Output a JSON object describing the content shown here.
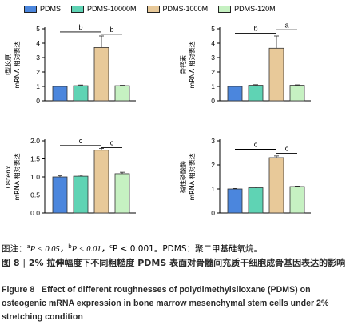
{
  "legend": [
    {
      "name": "PDMS",
      "color": "#4b86dd"
    },
    {
      "name": "PDMS-10000M",
      "color": "#5fd3b4"
    },
    {
      "name": "PDMS-1000M",
      "color": "#e8c999"
    },
    {
      "name": "PDMS-120M",
      "color": "#c6f1c2"
    }
  ],
  "chart_data": [
    {
      "type": "bar",
      "ylabel_lines": [
        "Ⅰ型胶原",
        "mRNA 相对表达"
      ],
      "categories": [
        "PDMS",
        "PDMS-10000M",
        "PDMS-1000M",
        "PDMS-120M"
      ],
      "values": [
        1.0,
        1.05,
        3.7,
        1.05
      ],
      "errors": [
        0.03,
        0.05,
        0.8,
        0.03
      ],
      "ylim": [
        0,
        5
      ],
      "ticks": [
        "0",
        "1",
        "2",
        "3",
        "4",
        "5"
      ],
      "brackets": [
        {
          "from": 0,
          "to": 2,
          "level": 4.78,
          "label": "b"
        },
        {
          "from": 2,
          "to": 3,
          "level": 4.62,
          "label": "b"
        }
      ]
    },
    {
      "type": "bar",
      "ylabel_lines": [
        "骨钙素",
        "mRNA 相对表达"
      ],
      "categories": [
        "PDMS",
        "PDMS-10000M",
        "PDMS-1000M",
        "PDMS-120M"
      ],
      "values": [
        1.0,
        1.08,
        3.65,
        1.08
      ],
      "errors": [
        0.03,
        0.04,
        0.85,
        0.03
      ],
      "ylim": [
        0,
        5
      ],
      "ticks": [
        "0",
        "1",
        "2",
        "3",
        "4",
        "5"
      ],
      "brackets": [
        {
          "from": 0,
          "to": 2,
          "level": 4.7,
          "label": "b"
        },
        {
          "from": 2,
          "to": 3,
          "level": 4.93,
          "label": "a"
        }
      ]
    },
    {
      "type": "bar",
      "ylabel_lines": [
        "Osterix",
        "mRNA 相对表达"
      ],
      "categories": [
        "PDMS",
        "PDMS-10000M",
        "PDMS-1000M",
        "PDMS-120M"
      ],
      "values": [
        1.0,
        1.02,
        1.74,
        1.09
      ],
      "errors": [
        0.03,
        0.03,
        0.05,
        0.04
      ],
      "ylim": [
        0,
        2.0
      ],
      "ticks": [
        "0.0",
        "0.5",
        "1.0",
        "1.5",
        "2.0"
      ],
      "brackets": [
        {
          "from": 0,
          "to": 2,
          "level": 1.87,
          "label": "c"
        },
        {
          "from": 2,
          "to": 3,
          "level": 1.81,
          "label": "c"
        }
      ]
    },
    {
      "type": "bar",
      "ylabel_lines": [
        "碱性磷酸酶",
        "mRNA 相对表达"
      ],
      "categories": [
        "PDMS",
        "PDMS-10000M",
        "PDMS-1000M",
        "PDMS-120M"
      ],
      "values": [
        1.0,
        1.05,
        2.3,
        1.1
      ],
      "errors": [
        0.02,
        0.03,
        0.07,
        0.02
      ],
      "ylim": [
        0,
        3
      ],
      "ticks": [
        "0",
        "1",
        "2",
        "3"
      ],
      "brackets": [
        {
          "from": 0,
          "to": 2,
          "level": 2.65,
          "label": "c"
        },
        {
          "from": 2,
          "to": 3,
          "level": 2.48,
          "label": "c"
        }
      ]
    }
  ],
  "notes": {
    "prefix": "图注：",
    "a_mark": "a",
    "a_text": "P < 0.05，",
    "b_mark": "b",
    "b_text": "P < 0.01，",
    "c_mark": "c",
    "c_text": "P < 0.001。PDMS：聚二甲基硅氧烷。"
  },
  "caption_cn": {
    "label": "图 8",
    "separator": "|",
    "text": "2% 拉伸幅度下不同粗糙度 PDMS 表面对骨髓间充质干细胞成骨基因表达的影响"
  },
  "caption_en": {
    "label": "Figure 8",
    "separator": "|",
    "text": "Effect of different roughnesses of polydimethylsiloxane (PDMS) on osteogenic mRNA expression in bone marrow mesenchymal stem cells under 2% stretching condition"
  }
}
